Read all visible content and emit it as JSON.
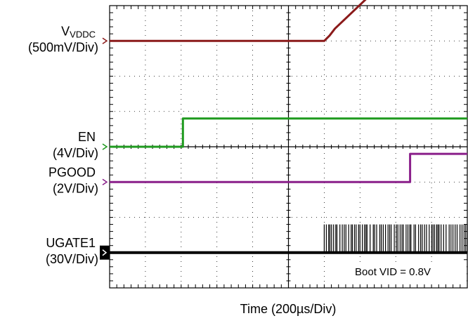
{
  "chart_data": {
    "type": "line",
    "title": "",
    "xlabel": "Time  (200µs/Div)",
    "ylabel": "",
    "x_divisions": 10,
    "y_divisions": 8,
    "grid": true,
    "x_unit": "div",
    "channels": [
      {
        "name": "VVDDC",
        "label_main": "V",
        "label_sub": "VDDC",
        "scale": "(500mV/Div)",
        "color": "#8b1a1a",
        "marker_level": 7.0,
        "points": [
          [
            0,
            7.0
          ],
          [
            6.0,
            7.0
          ],
          [
            6.15,
            7.15
          ],
          [
            6.3,
            7.35
          ],
          [
            7.6,
            8.6
          ],
          [
            10,
            8.6
          ]
        ]
      },
      {
        "name": "EN",
        "label_main": "EN",
        "scale": "(4V/Div)",
        "color": "#1e9a1e",
        "marker_level": 4.0,
        "points": [
          [
            0,
            4.0
          ],
          [
            2.05,
            4.0
          ],
          [
            2.05,
            4.8
          ],
          [
            10,
            4.8
          ]
        ]
      },
      {
        "name": "PGOOD",
        "label_main": "PGOOD",
        "scale": "(2V/Div)",
        "color": "#8a1f8a",
        "marker_level": 3.0,
        "points": [
          [
            0,
            3.0
          ],
          [
            8.4,
            3.0
          ],
          [
            8.4,
            3.8
          ],
          [
            10,
            3.8
          ]
        ]
      },
      {
        "name": "UGATE1",
        "label_main": "UGATE1",
        "scale": "(30V/Div)",
        "color": "#000000",
        "marker_level": 1.0,
        "baseline": 1.0,
        "pulse_high": 1.8,
        "switching_start": 6.0,
        "pulse_period": 0.06
      }
    ],
    "annotation": "Boot VID = 0.8V"
  }
}
